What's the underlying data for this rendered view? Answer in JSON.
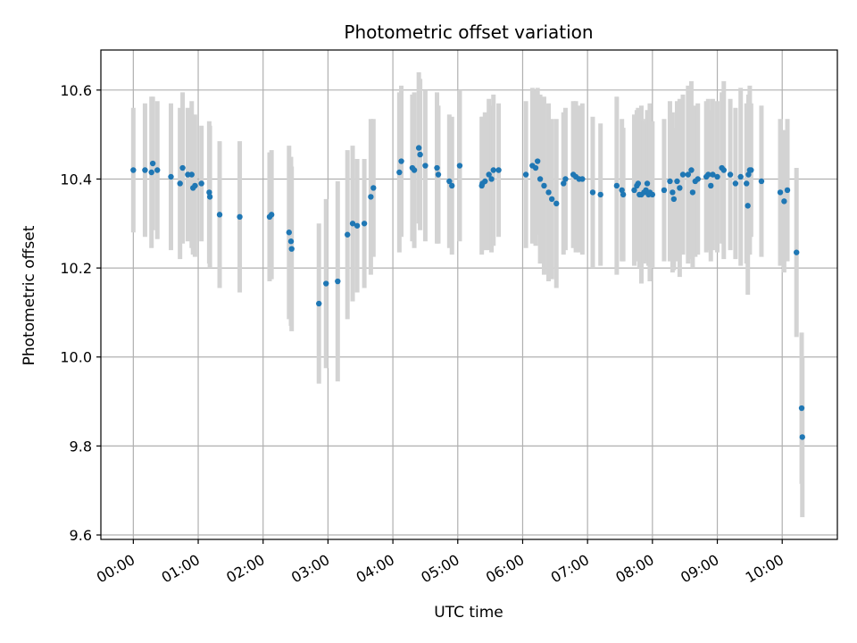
{
  "chart_data": {
    "type": "scatter",
    "title": "Photometric offset variation",
    "xlabel": "UTC time",
    "ylabel": "Photometric offset",
    "xlim": [
      -0.5,
      10.85
    ],
    "ylim": [
      9.59,
      10.69
    ],
    "grid": true,
    "xticks": [
      {
        "value": 0,
        "label": "00:00"
      },
      {
        "value": 1,
        "label": "01:00"
      },
      {
        "value": 2,
        "label": "02:00"
      },
      {
        "value": 3,
        "label": "03:00"
      },
      {
        "value": 4,
        "label": "04:00"
      },
      {
        "value": 5,
        "label": "05:00"
      },
      {
        "value": 6,
        "label": "06:00"
      },
      {
        "value": 7,
        "label": "07:00"
      },
      {
        "value": 8,
        "label": "08:00"
      },
      {
        "value": 9,
        "label": "09:00"
      },
      {
        "value": 10,
        "label": "10:00"
      }
    ],
    "yticks": [
      {
        "value": 9.6,
        "label": "9.6"
      },
      {
        "value": 9.8,
        "label": "9.8"
      },
      {
        "value": 10.0,
        "label": "10.0"
      },
      {
        "value": 10.2,
        "label": "10.2"
      },
      {
        "value": 10.4,
        "label": "10.4"
      },
      {
        "value": 10.6,
        "label": "10.6"
      }
    ],
    "colors": {
      "point": "#1f77b4",
      "errorbar": "#d3d3d3",
      "grid": "#b0b0b0"
    },
    "series": [
      {
        "name": "photometric offset",
        "columns": [
          "time_h",
          "offset",
          "error"
        ],
        "points": [
          [
            0.0,
            10.42,
            0.14
          ],
          [
            0.18,
            10.42,
            0.15
          ],
          [
            0.28,
            10.415,
            0.17
          ],
          [
            0.3,
            10.435,
            0.15
          ],
          [
            0.37,
            10.42,
            0.155
          ],
          [
            0.58,
            10.405,
            0.165
          ],
          [
            0.72,
            10.39,
            0.17
          ],
          [
            0.76,
            10.425,
            0.17
          ],
          [
            0.84,
            10.41,
            0.15
          ],
          [
            0.9,
            10.41,
            0.165
          ],
          [
            0.92,
            10.38,
            0.15
          ],
          [
            0.95,
            10.385,
            0.16
          ],
          [
            1.05,
            10.39,
            0.13
          ],
          [
            1.17,
            10.37,
            0.16
          ],
          [
            1.18,
            10.36,
            0.16
          ],
          [
            1.33,
            10.32,
            0.165
          ],
          [
            1.64,
            10.315,
            0.17
          ],
          [
            2.1,
            10.315,
            0.145
          ],
          [
            2.13,
            10.32,
            0.145
          ],
          [
            2.4,
            10.28,
            0.195
          ],
          [
            2.43,
            10.26,
            0.19
          ],
          [
            2.44,
            10.243,
            0.185
          ],
          [
            2.86,
            10.12,
            0.18
          ],
          [
            2.97,
            10.165,
            0.19
          ],
          [
            3.15,
            10.17,
            0.225
          ],
          [
            3.3,
            10.275,
            0.19
          ],
          [
            3.38,
            10.3,
            0.175
          ],
          [
            3.45,
            10.295,
            0.15
          ],
          [
            3.56,
            10.3,
            0.145
          ],
          [
            3.66,
            10.36,
            0.175
          ],
          [
            3.7,
            10.38,
            0.155
          ],
          [
            4.1,
            10.415,
            0.18
          ],
          [
            4.13,
            10.44,
            0.17
          ],
          [
            4.3,
            10.425,
            0.165
          ],
          [
            4.33,
            10.42,
            0.175
          ],
          [
            4.4,
            10.47,
            0.17
          ],
          [
            4.42,
            10.455,
            0.17
          ],
          [
            4.5,
            10.43,
            0.17
          ],
          [
            4.68,
            10.425,
            0.17
          ],
          [
            4.7,
            10.41,
            0.155
          ],
          [
            4.87,
            10.395,
            0.15
          ],
          [
            4.91,
            10.385,
            0.155
          ],
          [
            5.03,
            10.43,
            0.17
          ],
          [
            5.37,
            10.385,
            0.155
          ],
          [
            5.38,
            10.39,
            0.15
          ],
          [
            5.42,
            10.395,
            0.155
          ],
          [
            5.48,
            10.41,
            0.17
          ],
          [
            5.52,
            10.4,
            0.165
          ],
          [
            5.55,
            10.42,
            0.17
          ],
          [
            5.63,
            10.42,
            0.15
          ],
          [
            6.05,
            10.41,
            0.165
          ],
          [
            6.15,
            10.43,
            0.175
          ],
          [
            6.2,
            10.425,
            0.175
          ],
          [
            6.23,
            10.44,
            0.165
          ],
          [
            6.27,
            10.4,
            0.19
          ],
          [
            6.33,
            10.385,
            0.2
          ],
          [
            6.4,
            10.37,
            0.2
          ],
          [
            6.45,
            10.355,
            0.18
          ],
          [
            6.52,
            10.345,
            0.19
          ],
          [
            6.63,
            10.39,
            0.16
          ],
          [
            6.66,
            10.4,
            0.16
          ],
          [
            6.78,
            10.41,
            0.165
          ],
          [
            6.82,
            10.405,
            0.17
          ],
          [
            6.87,
            10.4,
            0.165
          ],
          [
            6.92,
            10.4,
            0.17
          ],
          [
            7.08,
            10.37,
            0.17
          ],
          [
            7.2,
            10.365,
            0.16
          ],
          [
            7.45,
            10.385,
            0.2
          ],
          [
            7.53,
            10.375,
            0.16
          ],
          [
            7.55,
            10.365,
            0.15
          ],
          [
            7.72,
            10.375,
            0.17
          ],
          [
            7.76,
            10.385,
            0.17
          ],
          [
            7.78,
            10.39,
            0.17
          ],
          [
            7.8,
            10.365,
            0.165
          ],
          [
            7.83,
            10.365,
            0.2
          ],
          [
            7.87,
            10.37,
            0.16
          ],
          [
            7.9,
            10.375,
            0.16
          ],
          [
            7.92,
            10.39,
            0.165
          ],
          [
            7.94,
            10.365,
            0.16
          ],
          [
            7.96,
            10.37,
            0.2
          ],
          [
            8.0,
            10.365,
            0.165
          ],
          [
            8.18,
            10.375,
            0.16
          ],
          [
            8.27,
            10.395,
            0.18
          ],
          [
            8.31,
            10.37,
            0.18
          ],
          [
            8.33,
            10.355,
            0.16
          ],
          [
            8.38,
            10.395,
            0.18
          ],
          [
            8.42,
            10.38,
            0.2
          ],
          [
            8.47,
            10.41,
            0.18
          ],
          [
            8.55,
            10.41,
            0.2
          ],
          [
            8.6,
            10.42,
            0.2
          ],
          [
            8.62,
            10.37,
            0.17
          ],
          [
            8.66,
            10.395,
            0.17
          ],
          [
            8.7,
            10.4,
            0.17
          ],
          [
            8.83,
            10.405,
            0.17
          ],
          [
            8.86,
            10.41,
            0.17
          ],
          [
            8.9,
            10.385,
            0.17
          ],
          [
            8.93,
            10.41,
            0.17
          ],
          [
            9.0,
            10.405,
            0.17
          ],
          [
            9.07,
            10.425,
            0.17
          ],
          [
            9.1,
            10.42,
            0.2
          ],
          [
            9.2,
            10.41,
            0.17
          ],
          [
            9.28,
            10.39,
            0.17
          ],
          [
            9.36,
            10.405,
            0.2
          ],
          [
            9.45,
            10.39,
            0.18
          ],
          [
            9.47,
            10.34,
            0.2
          ],
          [
            9.48,
            10.41,
            0.18
          ],
          [
            9.5,
            10.42,
            0.19
          ],
          [
            9.52,
            10.42,
            0.15
          ],
          [
            9.68,
            10.395,
            0.17
          ],
          [
            9.97,
            10.37,
            0.165
          ],
          [
            10.03,
            10.35,
            0.16
          ],
          [
            10.08,
            10.375,
            0.16
          ],
          [
            10.22,
            10.235,
            0.19
          ],
          [
            10.3,
            9.885,
            0.17
          ],
          [
            10.31,
            9.82,
            0.18
          ]
        ]
      }
    ]
  }
}
